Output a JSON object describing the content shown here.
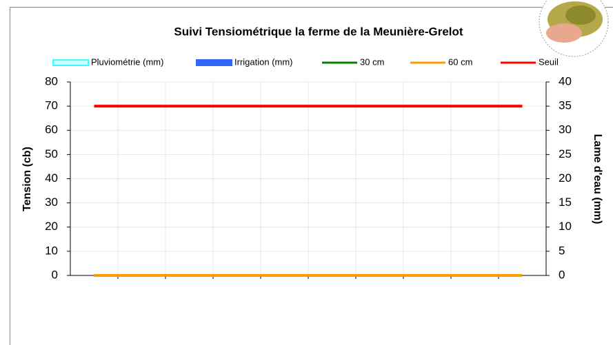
{
  "chart_data": {
    "type": "combo",
    "title": "Suivi Tensiométrique la ferme de la Meunière-Grelot",
    "y_label": "Tension (cb)",
    "y2_label": "Lame d'eau (mm)",
    "categories": [
      null,
      null,
      null,
      null,
      null,
      null,
      null,
      null,
      null,
      null
    ],
    "ylim": [
      0,
      80
    ],
    "yticks": [
      0,
      10,
      20,
      30,
      40,
      50,
      60,
      70,
      80
    ],
    "y2lim": [
      0,
      40
    ],
    "y2ticks": [
      0,
      5,
      10,
      15,
      20,
      25,
      30,
      35,
      40
    ],
    "grid": true,
    "series": [
      {
        "name": "Pluviométrie (mm)",
        "kind": "bar",
        "axis": "y2",
        "color": "#33ffff",
        "values": [
          0,
          0,
          0,
          0,
          0,
          0,
          0,
          0,
          0,
          0
        ]
      },
      {
        "name": "Irrigation (mm)",
        "kind": "bar",
        "axis": "y2",
        "color": "#3366ff",
        "values": [
          0,
          0,
          0,
          0,
          0,
          0,
          0,
          0,
          0,
          0
        ]
      },
      {
        "name": "30 cm",
        "kind": "line",
        "color": "#008000",
        "values": [
          0,
          0,
          0,
          0,
          0,
          0,
          0,
          0,
          0,
          0
        ]
      },
      {
        "name": "60 cm",
        "kind": "line",
        "color": "#ff9900",
        "values": [
          0,
          0,
          0,
          0,
          0,
          0,
          0,
          0,
          0,
          0
        ]
      },
      {
        "name": "Seuil",
        "kind": "line",
        "color": "#ff0000",
        "values": [
          70,
          70,
          70,
          70,
          70,
          70,
          70,
          70,
          70,
          70
        ]
      }
    ]
  }
}
